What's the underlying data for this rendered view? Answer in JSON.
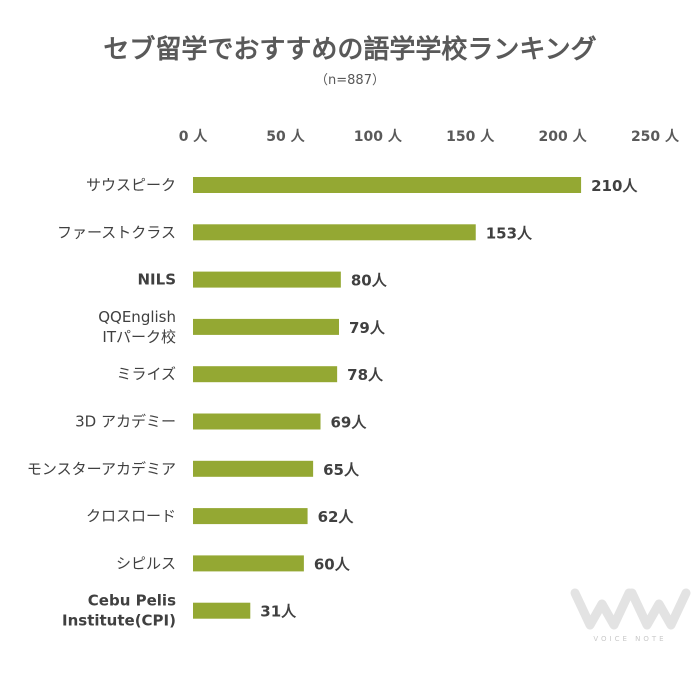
{
  "chart_data": {
    "type": "bar",
    "orientation": "horizontal",
    "title": "セブ留学でおすすめの語学学校ランキング",
    "subtitle": "（n=887）",
    "categories": [
      "サウスピーク",
      "ファーストクラス",
      "NILS",
      "QQEnglish\nITパーク校",
      "ミライズ",
      "3D アカデミー",
      "モンスターアカデミア",
      "クロスロード",
      "シピルス",
      "Cebu Pelis\nInstitute(CPI)"
    ],
    "values": [
      210,
      153,
      80,
      79,
      78,
      69,
      65,
      62,
      60,
      31
    ],
    "data_labels": [
      "210人",
      "153人",
      "80人",
      "79人",
      "78人",
      "69人",
      "65人",
      "62人",
      "60人",
      "31人"
    ],
    "xlim": [
      0,
      250
    ],
    "x_ticks": [
      0,
      50,
      100,
      150,
      200,
      250
    ],
    "x_tick_labels": [
      "0 人",
      "50 人",
      "100 人",
      "150 人",
      "200 人",
      "250 人"
    ],
    "x_axis_position": "top",
    "grid": false,
    "bar_color": "#94a833"
  },
  "watermark": {
    "text": "VOICE NOTE"
  }
}
